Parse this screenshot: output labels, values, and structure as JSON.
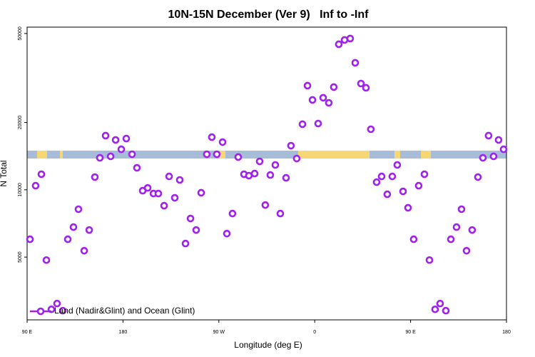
{
  "chart_data": {
    "type": "scatter",
    "title": "10N-15N December (Ver 9)   Inf to -Inf",
    "x_label": "Longitude (deg E)",
    "y_label": "N Total",
    "log_y": true,
    "legend": "bottom-left",
    "xlim": [
      90,
      540
    ],
    "ylim": [
      2620,
      53400
    ],
    "xticks": [
      {
        "value": 90,
        "label": "90 E"
      },
      {
        "value": 180,
        "label": "180"
      },
      {
        "value": 270,
        "label": "90 W"
      },
      {
        "value": 360,
        "label": "0"
      },
      {
        "value": 450,
        "label": "90 E"
      },
      {
        "value": 540,
        "label": "180"
      }
    ],
    "yticks": [
      5000,
      10000,
      20000,
      50000
    ],
    "x": [
      92.7,
      98.0,
      103.4,
      108.1,
      112.8,
      118.1,
      123.5,
      128.2,
      133.5,
      138.2,
      143.6,
      148.3,
      153.6,
      158.3,
      163.7,
      168.4,
      173.1,
      178.4,
      183.1,
      188.5,
      193.1,
      198.5,
      203.2,
      208.6,
      213.2,
      218.6,
      223.3,
      228.6,
      233.3,
      238.7,
      243.4,
      248.7,
      253.4,
      258.7,
      263.4,
      268.1,
      273.5,
      277.5,
      282.8,
      288.2,
      293.6,
      298.2,
      303.6,
      308.3,
      313.6,
      318.3,
      323.0,
      327.7,
      333.1,
      337.7,
      343.1,
      348.5,
      353.2,
      357.9,
      363.2,
      367.9,
      373.2,
      377.9,
      382.6,
      388.0,
      393.3,
      398.0,
      403.4,
      408.1,
      412.7,
      418.1,
      422.8,
      428.1,
      432.8,
      437.5,
      442.9,
      447.6,
      452.9,
      457.6,
      463.0,
      467.7,
      473.0,
      477.7,
      483.1,
      487.8,
      493.1,
      497.8,
      502.5,
      507.8,
      513.2,
      517.9,
      523.2,
      527.9,
      532.6,
      537.3
    ],
    "series": [
      {
        "name": "Land (Nadir&Glint) and Ocean (Glint)",
        "color": "#a020f0",
        "values": [
          6010,
          10430,
          11740,
          4850,
          2920,
          3100,
          2880,
          6010,
          6810,
          8190,
          5340,
          6610,
          11400,
          13900,
          17470,
          14110,
          16710,
          15180,
          16950,
          14420,
          12540,
          9910,
          10200,
          9620,
          9620,
          8490,
          11480,
          9210,
          11070,
          5750,
          7440,
          6610,
          9700,
          14420,
          17200,
          14420,
          16340,
          6370,
          7830,
          14010,
          11740,
          11570,
          11820,
          13400,
          8550,
          11650,
          12920,
          7830,
          11310,
          15750,
          13800,
          19650,
          29230,
          25230,
          19790,
          25800,
          24490,
          28800,
          44780,
          46800,
          47490,
          36980,
          29870,
          28590,
          18660,
          10820,
          11480,
          9550,
          11480,
          12920,
          9840,
          8310,
          6010,
          10430,
          11740,
          4850,
          2920,
          3100,
          2880,
          6010,
          6810,
          8190,
          5340,
          6610,
          11400,
          13900,
          17470,
          14110,
          16710,
          15180
        ]
      }
    ]
  }
}
